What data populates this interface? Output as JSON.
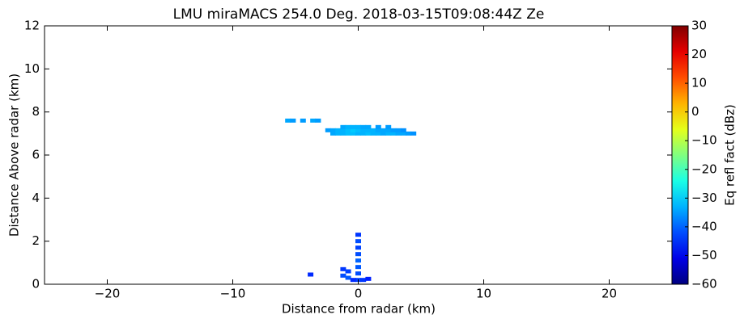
{
  "chart_data": {
    "type": "heatmap",
    "title": "LMU miraMACS 254.0 Deg. 2018-03-15T09:08:44Z  Ze",
    "xlabel": "Distance from radar (km)",
    "ylabel": "Distance Above radar  (km)",
    "colorbar_label": "Eq refl fact (dBz)",
    "colormap": "jet",
    "xlim": [
      -25,
      25
    ],
    "xticks": [
      {
        "value": -20,
        "label": "−20"
      },
      {
        "value": -10,
        "label": "−10"
      },
      0,
      10,
      20
    ],
    "ylim": [
      0,
      12
    ],
    "yticks": [
      0,
      2,
      4,
      6,
      8,
      10,
      12
    ],
    "clim": [
      -60,
      30
    ],
    "cticks": [
      {
        "value": -60,
        "label": "−60"
      },
      {
        "value": -50,
        "label": "−50"
      },
      {
        "value": -40,
        "label": "−40"
      },
      {
        "value": -30,
        "label": "−30"
      },
      {
        "value": -20,
        "label": "−20"
      },
      {
        "value": -10,
        "label": "−10"
      },
      0,
      10,
      20,
      30
    ],
    "cells": {
      "x": [
        -2.0,
        -1.6,
        -1.2,
        -0.8,
        -0.4,
        0,
        0.4,
        0.8,
        1.2,
        1.6,
        2.0,
        2.4,
        2.8,
        3.2,
        3.6,
        4.0,
        4.4,
        -2.4,
        -2.0,
        -1.6,
        -1.2,
        -0.8,
        -0.4,
        0,
        0.4,
        0.8,
        1.2,
        1.6,
        2.0,
        2.4,
        2.8,
        3.2,
        3.6,
        -1.2,
        -0.8,
        -0.4,
        0,
        0.4,
        0.8,
        1.6,
        2.4,
        -5.6,
        -5.2,
        -4.4,
        -3.6,
        -3.2,
        0,
        0,
        0,
        0,
        0,
        0,
        0,
        0,
        -1.2,
        -1.2,
        -0.8,
        -0.8,
        -0.4,
        0.4,
        0.8,
        -3.8
      ],
      "y": [
        7.0,
        7.0,
        7.0,
        7.0,
        7.0,
        7.0,
        7.0,
        7.0,
        7.0,
        7.0,
        7.0,
        7.0,
        7.0,
        7.0,
        7.0,
        7.0,
        7.0,
        7.15,
        7.15,
        7.15,
        7.15,
        7.15,
        7.15,
        7.15,
        7.15,
        7.15,
        7.15,
        7.15,
        7.15,
        7.15,
        7.15,
        7.15,
        7.15,
        7.3,
        7.3,
        7.3,
        7.3,
        7.3,
        7.3,
        7.3,
        7.3,
        7.6,
        7.6,
        7.6,
        7.6,
        7.6,
        0.2,
        0.5,
        0.8,
        1.1,
        1.4,
        1.7,
        2.0,
        2.3,
        0.4,
        0.7,
        0.3,
        0.6,
        0.2,
        0.2,
        0.25,
        0.45
      ],
      "values": [
        -34,
        -33,
        -33,
        -32,
        -32,
        -33,
        -33,
        -32,
        -33,
        -33,
        -34,
        -33,
        -33,
        -34,
        -34,
        -35,
        -36,
        -35,
        -34,
        -33,
        -33,
        -32,
        -31,
        -32,
        -33,
        -33,
        -33,
        -34,
        -34,
        -34,
        -35,
        -35,
        -36,
        -34,
        -33,
        -33,
        -33,
        -34,
        -34,
        -35,
        -35,
        -34,
        -35,
        -35,
        -34,
        -35,
        -43,
        -42,
        -41,
        -40,
        -42,
        -43,
        -42,
        -44,
        -42,
        -44,
        -41,
        -43,
        -45,
        -44,
        -46,
        -45
      ]
    }
  }
}
